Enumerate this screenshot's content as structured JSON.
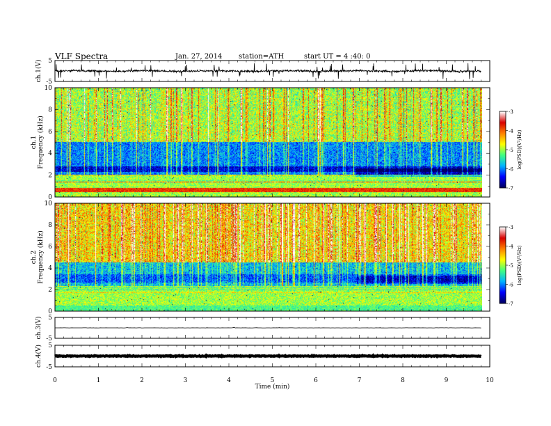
{
  "header": {
    "title": "VLF Spectra",
    "date": "Jan. 27, 2014",
    "station": "station=ATH",
    "start_ut": "start UT = 4 :40: 0"
  },
  "colormap": [
    "#000060",
    "#0000ff",
    "#00b4ff",
    "#40ff80",
    "#ffff00",
    "#ff8000",
    "#d80000",
    "#ffffff"
  ],
  "chart_data": [
    {
      "id": "ch1-waveform",
      "type": "line",
      "ylabel": "ch.1(V)",
      "yticks": [
        "5",
        "-5"
      ],
      "ylim": [
        -5,
        5
      ],
      "xlim": [
        0,
        10
      ],
      "data_xrange": [
        0,
        9.8
      ],
      "signal": "noisy waveform centered near 0 V, amplitude about ±1 V with spikes up to about ±4 V"
    },
    {
      "id": "ch1-spectrogram",
      "type": "heatmap",
      "ylabel": "Frequency (kHz)",
      "sublabel": "ch.1",
      "yticks": [
        "0",
        "2",
        "4",
        "6",
        "8",
        "10"
      ],
      "ylim": [
        0,
        10
      ],
      "xlim": [
        0,
        10
      ],
      "data_xrange": [
        0,
        9.8
      ],
      "colorbar": {
        "label": "log(PSD)(V²/Hz)",
        "ticks": [
          "-3",
          "-4",
          "-5",
          "-6",
          "-7"
        ],
        "range": [
          -7,
          -3
        ]
      },
      "features": "broadband sferics (vertical streaks) 0–10 kHz; low-power band near 2–4.5 kHz; strong narrowband lines below 2 kHz; spectral change at about 6.9 min"
    },
    {
      "id": "ch2-spectrogram",
      "type": "heatmap",
      "ylabel": "Frequency (kHz)",
      "sublabel": "ch.2",
      "yticks": [
        "0",
        "2",
        "4",
        "6",
        "8",
        "10"
      ],
      "ylim": [
        0,
        10
      ],
      "xlim": [
        0,
        10
      ],
      "data_xrange": [
        0,
        9.8
      ],
      "colorbar": {
        "label": "log(PSD)(V²/Hz)",
        "ticks": [
          "-3",
          "-4",
          "-5",
          "-6",
          "-7"
        ],
        "range": [
          -7,
          -3
        ]
      },
      "features": "stronger broadband sferics than ch.1, intense above 5 kHz; low-power band near 2.5–3.5 kHz; spectral change at about 6.9 min"
    },
    {
      "id": "ch3-waveform",
      "type": "line",
      "ylabel": "ch.3(V)",
      "yticks": [
        "5",
        "-5"
      ],
      "ylim": [
        -5,
        5
      ],
      "xlim": [
        0,
        10
      ],
      "data_xrange": [
        0,
        9.8
      ],
      "signal": "flat trace near 0 V"
    },
    {
      "id": "ch4-waveform",
      "type": "line",
      "ylabel": "ch.4(V)",
      "yticks": [
        "5",
        "-5"
      ],
      "ylim": [
        -5,
        5
      ],
      "xlim": [
        0,
        10
      ],
      "data_xrange": [
        0,
        9.8
      ],
      "signal": "thick dense trace near 0 V"
    }
  ],
  "xaxis": {
    "label": "Time (min)",
    "ticks": [
      "0",
      "1",
      "2",
      "3",
      "4",
      "5",
      "6",
      "7",
      "8",
      "9",
      "10"
    ],
    "range": [
      0,
      10
    ]
  }
}
